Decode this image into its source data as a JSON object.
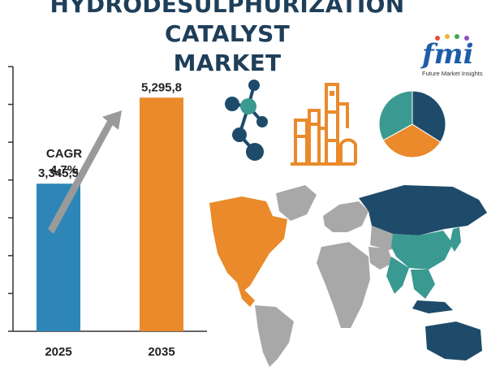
{
  "header": {
    "title_line1": "HYDRODESULPHURIZATION CATALYST",
    "title_line2": "MARKET"
  },
  "brand": {
    "logo_text": "fmi",
    "logo_tagline": "Future Market Insights"
  },
  "colors": {
    "title": "#1e3f5a",
    "bar_2025": "#2e86b8",
    "bar_2035": "#ea8a2b",
    "arrow": "#9a9a9a",
    "teal": "#3a9a91",
    "navy": "#1e4b6a",
    "orange": "#ea8a2b",
    "gray_land": "#a8a8a8"
  },
  "chart_data": {
    "type": "bar",
    "categories": [
      "2025",
      "2035"
    ],
    "values": [
      3345.5,
      5295.8
    ],
    "value_labels": [
      "3,345,5",
      "5,295,8"
    ],
    "annotation": {
      "line1": "CAGR",
      "line2": "4,7%"
    },
    "ylim": [
      0,
      6000
    ],
    "grid": false
  },
  "decor": {
    "pie_segments": [
      {
        "color": "#1e4b6a",
        "fraction": 0.34
      },
      {
        "color": "#ea8a2b",
        "fraction": 0.33
      },
      {
        "color": "#3a9a91",
        "fraction": 0.33
      }
    ],
    "icons": [
      "molecule-icon",
      "refinery-icon",
      "pie-chart-icon",
      "world-map-icon"
    ]
  }
}
